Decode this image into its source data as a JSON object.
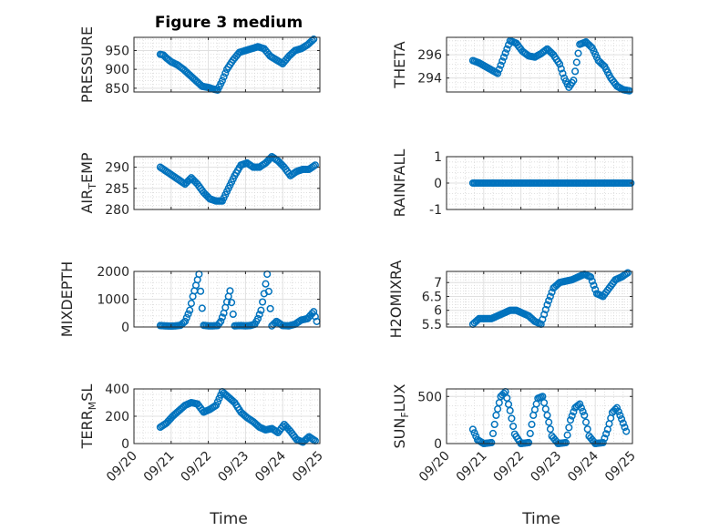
{
  "title": "Figure 3 medium",
  "chart_data": [
    {
      "type": "scatter",
      "panel": "left-1",
      "ylabel": "PRESSURE",
      "ylim": [
        840,
        985
      ],
      "yticks": [
        850,
        900,
        950
      ],
      "ytick_labels": [
        "850",
        "900",
        "950"
      ],
      "grid": true,
      "marker": "circle-open",
      "color": "#0072BD",
      "x": [
        "2009-09-20 17:00",
        "2009-09-20 19:00",
        "2009-09-20 21:00",
        "2009-09-21 00:00",
        "2009-09-21 04:00",
        "2009-09-21 08:00",
        "2009-09-21 12:00",
        "2009-09-21 16:00",
        "2009-09-21 20:00",
        "2009-09-22 00:00",
        "2009-09-22 03:00",
        "2009-09-22 06:00",
        "2009-09-22 09:00",
        "2009-09-22 12:00",
        "2009-09-22 16:00",
        "2009-09-22 20:00",
        "2009-09-23 00:00",
        "2009-09-23 04:00",
        "2009-09-23 08:00",
        "2009-09-23 12:00",
        "2009-09-23 16:00",
        "2009-09-23 20:00",
        "2009-09-24 00:00",
        "2009-09-24 04:00",
        "2009-09-24 08:00",
        "2009-09-24 12:00",
        "2009-09-24 16:00",
        "2009-09-24 20:00"
      ],
      "y": [
        940,
        938,
        930,
        920,
        912,
        900,
        885,
        870,
        855,
        852,
        848,
        845,
        870,
        900,
        925,
        945,
        950,
        955,
        960,
        955,
        935,
        925,
        915,
        935,
        950,
        955,
        965,
        980
      ]
    },
    {
      "type": "scatter",
      "panel": "right-1",
      "ylabel": "THETA",
      "ylim": [
        292.8,
        297.5
      ],
      "yticks": [
        294,
        296
      ],
      "ytick_labels": [
        "294",
        "296"
      ],
      "grid": true,
      "marker": "circle-open",
      "color": "#0072BD",
      "x": [
        "2009-09-20 17:00",
        "2009-09-20 21:00",
        "2009-09-21 01:00",
        "2009-09-21 05:00",
        "2009-09-21 09:00",
        "2009-09-21 13:00",
        "2009-09-21 17:00",
        "2009-09-21 21:00",
        "2009-09-22 01:00",
        "2009-09-22 05:00",
        "2009-09-22 09:00",
        "2009-09-22 13:00",
        "2009-09-22 17:00",
        "2009-09-22 21:00",
        "2009-09-23 01:00",
        "2009-09-23 04:00",
        "2009-09-23 07:00",
        "2009-09-23 10:00",
        "2009-09-23 14:00",
        "2009-09-23 18:00",
        "2009-09-23 22:00",
        "2009-09-24 02:00",
        "2009-09-24 06:00",
        "2009-09-24 10:00",
        "2009-09-24 14:00",
        "2009-09-24 18:00",
        "2009-09-24 22:00"
      ],
      "y": [
        295.5,
        295.3,
        295.0,
        294.7,
        294.4,
        295.8,
        297.2,
        297.0,
        296.3,
        295.9,
        295.8,
        296.1,
        296.5,
        296.0,
        295.2,
        294.0,
        293.2,
        293.8,
        296.9,
        297.1,
        296.6,
        295.5,
        295.0,
        294.0,
        293.3,
        293.0,
        292.9
      ]
    },
    {
      "type": "scatter",
      "panel": "left-2",
      "ylabel": "AIR_TEMP",
      "ylabel_parts": [
        "AIR",
        "T",
        "EMP"
      ],
      "ylim": [
        280,
        292.5
      ],
      "yticks": [
        280,
        285,
        290
      ],
      "ytick_labels": [
        "280",
        "285",
        "290"
      ],
      "grid": true,
      "marker": "circle-open",
      "color": "#0072BD",
      "x": [
        "2009-09-20 17:00",
        "2009-09-20 21:00",
        "2009-09-21 01:00",
        "2009-09-21 05:00",
        "2009-09-21 09:00",
        "2009-09-21 13:00",
        "2009-09-21 17:00",
        "2009-09-21 21:00",
        "2009-09-22 01:00",
        "2009-09-22 05:00",
        "2009-09-22 09:00",
        "2009-09-22 13:00",
        "2009-09-22 17:00",
        "2009-09-22 21:00",
        "2009-09-23 01:00",
        "2009-09-23 05:00",
        "2009-09-23 09:00",
        "2009-09-23 13:00",
        "2009-09-23 17:00",
        "2009-09-23 21:00",
        "2009-09-24 01:00",
        "2009-09-24 05:00",
        "2009-09-24 09:00",
        "2009-09-24 13:00",
        "2009-09-24 17:00",
        "2009-09-24 21:00"
      ],
      "y": [
        290,
        289,
        288,
        287,
        286,
        287.5,
        286,
        284,
        282.5,
        282,
        282,
        285,
        288,
        290.5,
        291,
        290,
        290,
        291,
        292.5,
        291.5,
        290,
        288,
        289,
        289.5,
        289.5,
        290.5
      ]
    },
    {
      "type": "scatter",
      "panel": "right-2",
      "ylabel": "RAINFALL",
      "ylim": [
        -1,
        1
      ],
      "yticks": [
        -1,
        0,
        1
      ],
      "ytick_labels": [
        "-1",
        "0",
        "1"
      ],
      "grid": true,
      "marker": "circle-open",
      "color": "#0072BD",
      "x_range": [
        "2009-09-20 17:00",
        "2009-09-24 23:00"
      ],
      "constant": 0
    },
    {
      "type": "scatter",
      "panel": "left-3",
      "ylabel": "MIXDEPTH",
      "ylim": [
        0,
        2000
      ],
      "yticks": [
        0,
        1000,
        2000
      ],
      "ytick_labels": [
        "0",
        "1000",
        "2000"
      ],
      "grid": true,
      "marker": "circle-open",
      "color": "#0072BD",
      "x": [
        "2009-09-20 17:00",
        "2009-09-20 20:00",
        "2009-09-21 00:00",
        "2009-09-21 03:00",
        "2009-09-21 06:00",
        "2009-09-21 09:00",
        "2009-09-21 12:00",
        "2009-09-21 14:00",
        "2009-09-21 16:00",
        "2009-09-21 18:00",
        "2009-09-21 21:00",
        "2009-09-22 00:00",
        "2009-09-22 03:00",
        "2009-09-22 06:00",
        "2009-09-22 08:00",
        "2009-09-22 10:00",
        "2009-09-22 12:00",
        "2009-09-22 14:00",
        "2009-09-22 17:00",
        "2009-09-22 21:00",
        "2009-09-23 00:00",
        "2009-09-23 03:00",
        "2009-09-23 06:00",
        "2009-09-23 08:00",
        "2009-09-23 10:00",
        "2009-09-23 12:00",
        "2009-09-23 14:00",
        "2009-09-23 17:00",
        "2009-09-23 20:00",
        "2009-09-24 00:00",
        "2009-09-24 04:00",
        "2009-09-24 08:00",
        "2009-09-24 12:00",
        "2009-09-24 16:00",
        "2009-09-24 20:00",
        "2009-09-24 22:00"
      ],
      "y": [
        50,
        40,
        30,
        40,
        60,
        200,
        600,
        1100,
        1500,
        1900,
        60,
        40,
        40,
        50,
        200,
        500,
        900,
        1300,
        40,
        50,
        40,
        50,
        100,
        300,
        600,
        1200,
        1900,
        40,
        200,
        50,
        40,
        100,
        250,
        300,
        550,
        200
      ]
    },
    {
      "type": "scatter",
      "panel": "right-3",
      "ylabel": "H2OMIXRA",
      "ylim": [
        5.4,
        7.4
      ],
      "yticks": [
        5.5,
        6,
        6.5,
        7
      ],
      "ytick_labels": [
        "5.5",
        "6",
        "6.5",
        "7"
      ],
      "grid": true,
      "marker": "circle-open",
      "color": "#0072BD",
      "x": [
        "2009-09-20 17:00",
        "2009-09-20 21:00",
        "2009-09-21 01:00",
        "2009-09-21 05:00",
        "2009-09-21 09:00",
        "2009-09-21 13:00",
        "2009-09-21 17:00",
        "2009-09-21 21:00",
        "2009-09-22 01:00",
        "2009-09-22 05:00",
        "2009-09-22 09:00",
        "2009-09-22 13:00",
        "2009-09-22 17:00",
        "2009-09-22 21:00",
        "2009-09-23 01:00",
        "2009-09-23 05:00",
        "2009-09-23 09:00",
        "2009-09-23 13:00",
        "2009-09-23 17:00",
        "2009-09-23 21:00",
        "2009-09-24 01:00",
        "2009-09-24 05:00",
        "2009-09-24 09:00",
        "2009-09-24 13:00",
        "2009-09-24 17:00",
        "2009-09-24 21:00"
      ],
      "y": [
        5.5,
        5.7,
        5.7,
        5.7,
        5.8,
        5.9,
        6.0,
        6.0,
        5.9,
        5.8,
        5.6,
        5.5,
        6.2,
        6.8,
        7.0,
        7.05,
        7.1,
        7.2,
        7.3,
        7.2,
        6.6,
        6.5,
        6.8,
        7.1,
        7.2,
        7.35
      ]
    },
    {
      "type": "scatter",
      "panel": "left-4",
      "ylabel": "TERR_MSL",
      "ylabel_parts": [
        "TERR",
        "M",
        "SL"
      ],
      "ylim": [
        0,
        400
      ],
      "yticks": [
        0,
        200,
        400
      ],
      "ytick_labels": [
        "0",
        "200",
        "400"
      ],
      "grid": true,
      "marker": "circle-open",
      "color": "#0072BD",
      "x": [
        "2009-09-20 17:00",
        "2009-09-20 21:00",
        "2009-09-21 01:00",
        "2009-09-21 05:00",
        "2009-09-21 09:00",
        "2009-09-21 13:00",
        "2009-09-21 17:00",
        "2009-09-21 21:00",
        "2009-09-22 01:00",
        "2009-09-22 05:00",
        "2009-09-22 09:00",
        "2009-09-22 13:00",
        "2009-09-22 17:00",
        "2009-09-22 21:00",
        "2009-09-23 01:00",
        "2009-09-23 05:00",
        "2009-09-23 09:00",
        "2009-09-23 13:00",
        "2009-09-23 17:00",
        "2009-09-23 21:00",
        "2009-09-24 01:00",
        "2009-09-24 05:00",
        "2009-09-24 09:00",
        "2009-09-24 13:00",
        "2009-09-24 17:00",
        "2009-09-24 21:00"
      ],
      "y": [
        120,
        150,
        200,
        240,
        280,
        300,
        290,
        230,
        250,
        280,
        380,
        340,
        300,
        230,
        190,
        160,
        120,
        100,
        110,
        80,
        140,
        90,
        30,
        10,
        50,
        20
      ]
    },
    {
      "type": "scatter",
      "panel": "right-4",
      "ylabel": "SUN_FLUX",
      "ylabel_parts": [
        "SUN",
        "F",
        "LUX"
      ],
      "ylim": [
        0,
        580
      ],
      "yticks": [
        0,
        500
      ],
      "ytick_labels": [
        "0",
        "500"
      ],
      "grid": true,
      "marker": "circle-open",
      "color": "#0072BD",
      "x": [
        "2009-09-20 17:00",
        "2009-09-20 20:00",
        "2009-09-21 00:00",
        "2009-09-21 05:00",
        "2009-09-21 08:00",
        "2009-09-21 11:00",
        "2009-09-21 14:00",
        "2009-09-21 17:00",
        "2009-09-21 20:00",
        "2009-09-22 00:00",
        "2009-09-22 05:00",
        "2009-09-22 08:00",
        "2009-09-22 11:00",
        "2009-09-22 14:00",
        "2009-09-22 17:00",
        "2009-09-22 20:00",
        "2009-09-23 00:00",
        "2009-09-23 05:00",
        "2009-09-23 08:00",
        "2009-09-23 11:00",
        "2009-09-23 14:00",
        "2009-09-23 17:00",
        "2009-09-23 20:00",
        "2009-09-24 00:00",
        "2009-09-24 05:00",
        "2009-09-24 08:00",
        "2009-09-24 11:00",
        "2009-09-24 14:00",
        "2009-09-24 17:00",
        "2009-09-24 20:00"
      ],
      "y": [
        150,
        40,
        0,
        10,
        300,
        500,
        550,
        350,
        100,
        0,
        10,
        300,
        480,
        500,
        300,
        80,
        0,
        10,
        250,
        380,
        420,
        300,
        80,
        0,
        10,
        150,
        330,
        380,
        260,
        130
      ]
    }
  ],
  "xaxis": {
    "range": [
      "2009-09-20",
      "2009-09-25"
    ],
    "tick_labels": [
      "09/20",
      "09/21",
      "09/22",
      "09/23",
      "09/24",
      "09/25"
    ],
    "label": "Time"
  }
}
